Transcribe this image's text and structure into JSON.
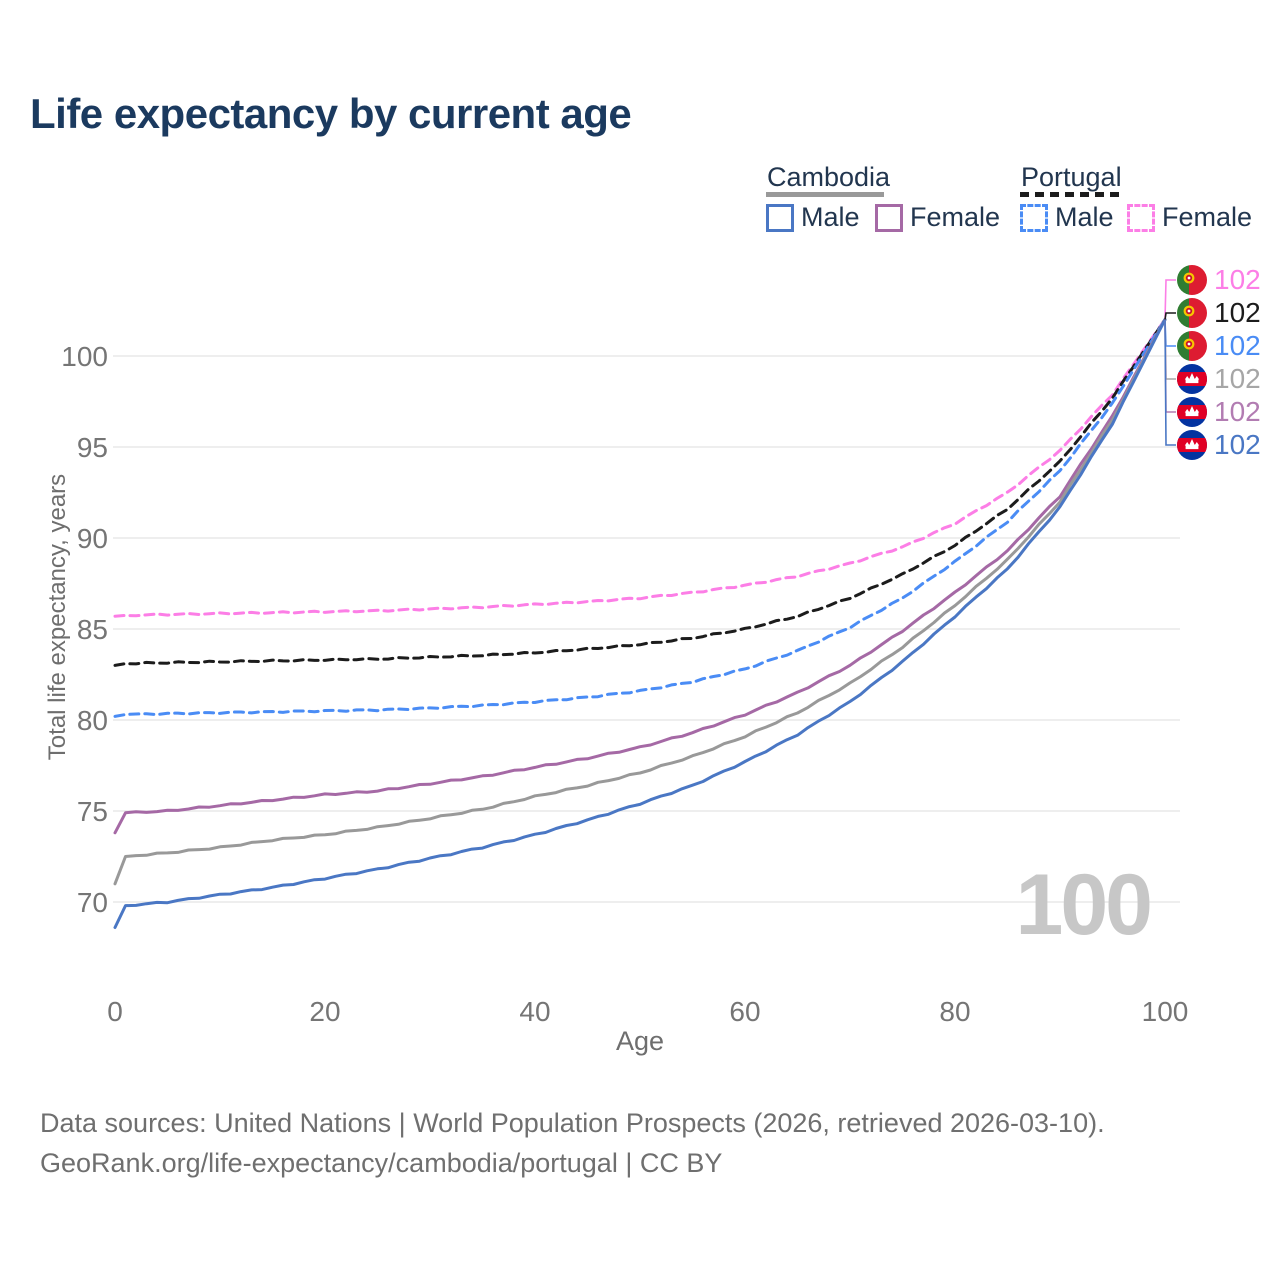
{
  "title": "Life expectancy by current age",
  "watermark_age": "100",
  "legend": {
    "groups": [
      {
        "country": "Cambodia",
        "line_style": "solid",
        "underline_color": "#999999",
        "items": [
          {
            "label": "Male",
            "color": "#4a77c4"
          },
          {
            "label": "Female",
            "color": "#a569a5"
          }
        ]
      },
      {
        "country": "Portugal",
        "line_style": "dashed",
        "underline_color": "#1c1c1c",
        "items": [
          {
            "label": "Male",
            "color": "#4a8cf5"
          },
          {
            "label": "Female",
            "color": "#fc7ee6"
          }
        ]
      }
    ]
  },
  "y_axis": {
    "label": "Total life expectancy, years",
    "ticks": [
      100,
      95,
      90,
      85,
      80,
      75,
      70
    ]
  },
  "x_axis": {
    "label": "Age",
    "ticks": [
      0,
      20,
      40,
      60,
      80,
      100
    ]
  },
  "end_labels": [
    {
      "value": "102",
      "flag": "portugal",
      "color": "#fc7ee6",
      "series": "Portugal Female"
    },
    {
      "value": "102",
      "flag": "portugal",
      "color": "#1c1c1c",
      "series": "Portugal Both"
    },
    {
      "value": "102",
      "flag": "portugal",
      "color": "#4a8cf5",
      "series": "Portugal Male"
    },
    {
      "value": "102",
      "flag": "cambodia",
      "color": "#a6a6a6",
      "series": "Cambodia Both"
    },
    {
      "value": "102",
      "flag": "cambodia",
      "color": "#b27cb2",
      "series": "Cambodia Female"
    },
    {
      "value": "102",
      "flag": "cambodia",
      "color": "#4a77c4",
      "series": "Cambodia Male"
    }
  ],
  "footer": {
    "line1": "Data sources: United Nations | World Population Prospects (2026, retrieved 2026-03-10).",
    "line2": "GeoRank.org/life-expectancy/cambodia/portugal | CC BY"
  },
  "chart_data": {
    "type": "line",
    "title": "Life expectancy by current age",
    "xlabel": "Age",
    "ylabel": "Total life expectancy, years",
    "xlim": [
      0,
      100
    ],
    "ylim": [
      67,
      103
    ],
    "grid": "horizontal-only",
    "legend_position": "top-right",
    "x": [
      0,
      1,
      5,
      10,
      15,
      20,
      25,
      30,
      35,
      40,
      45,
      50,
      55,
      60,
      65,
      70,
      75,
      80,
      85,
      90,
      95,
      100
    ],
    "series": [
      {
        "name": "Portugal Female",
        "color": "#fc7ee6",
        "dash": "dashed",
        "values": [
          85.7,
          85.75,
          85.8,
          85.85,
          85.9,
          85.95,
          86.0,
          86.1,
          86.2,
          86.35,
          86.5,
          86.7,
          87.0,
          87.4,
          87.9,
          88.6,
          89.5,
          90.8,
          92.5,
          94.8,
          97.9,
          102
        ]
      },
      {
        "name": "Portugal Both sexes",
        "color": "#1c1c1c",
        "dash": "dashed",
        "values": [
          83.0,
          83.1,
          83.15,
          83.2,
          83.25,
          83.3,
          83.35,
          83.45,
          83.55,
          83.7,
          83.9,
          84.15,
          84.5,
          85.0,
          85.7,
          86.7,
          88.0,
          89.6,
          91.6,
          94.2,
          97.7,
          102
        ]
      },
      {
        "name": "Portugal Male",
        "color": "#4a8cf5",
        "dash": "dashed",
        "values": [
          80.2,
          80.3,
          80.35,
          80.4,
          80.45,
          80.5,
          80.55,
          80.65,
          80.8,
          81.0,
          81.25,
          81.6,
          82.1,
          82.8,
          83.8,
          85.1,
          86.7,
          88.7,
          90.9,
          93.7,
          97.4,
          102
        ]
      },
      {
        "name": "Cambodia Female",
        "color": "#a569a5",
        "dash": "solid",
        "values": [
          73.8,
          74.9,
          75.0,
          75.3,
          75.6,
          75.9,
          76.1,
          76.5,
          76.9,
          77.4,
          77.9,
          78.5,
          79.3,
          80.3,
          81.5,
          83.0,
          84.9,
          87.0,
          89.3,
          92.3,
          96.7,
          102
        ]
      },
      {
        "name": "Cambodia Both sexes",
        "color": "#999999",
        "dash": "solid",
        "values": [
          71.0,
          72.5,
          72.7,
          73.0,
          73.4,
          73.7,
          74.1,
          74.6,
          75.1,
          75.8,
          76.4,
          77.1,
          78.0,
          79.1,
          80.4,
          82.0,
          84.0,
          86.3,
          88.8,
          92.0,
          96.5,
          102
        ]
      },
      {
        "name": "Cambodia Male",
        "color": "#4a77c4",
        "dash": "solid",
        "values": [
          68.6,
          69.8,
          70.0,
          70.4,
          70.8,
          71.3,
          71.8,
          72.4,
          73.0,
          73.7,
          74.5,
          75.4,
          76.4,
          77.7,
          79.2,
          81.0,
          83.2,
          85.7,
          88.3,
          91.7,
          96.3,
          102
        ]
      }
    ],
    "end_value_all_series": 102
  }
}
